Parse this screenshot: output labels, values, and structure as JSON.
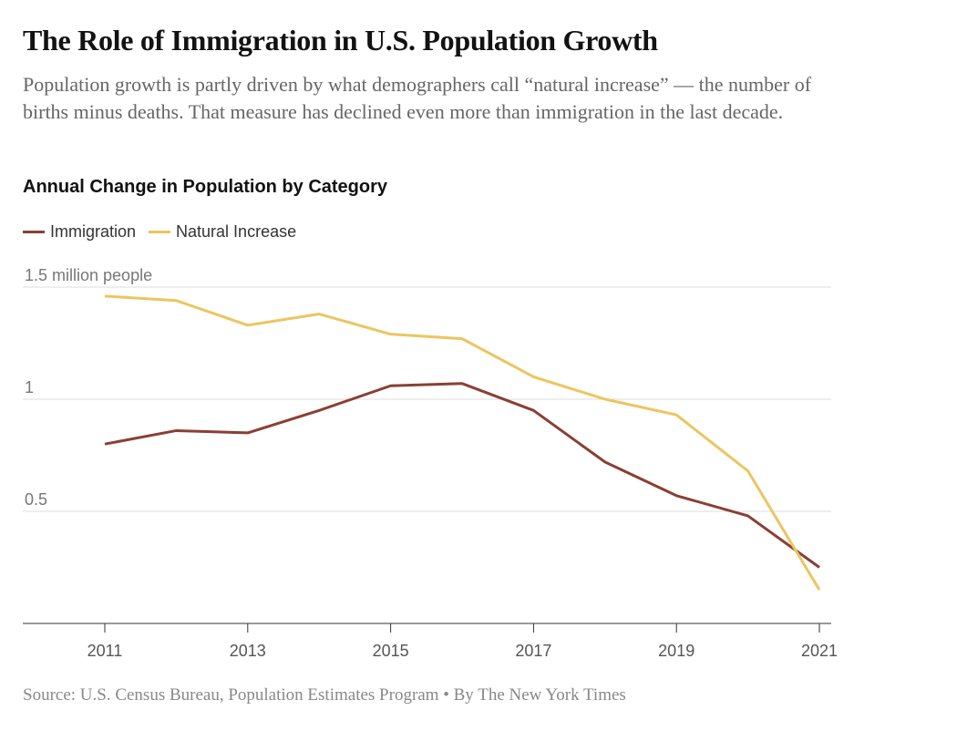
{
  "header": {
    "title": "The Role of Immigration in U.S. Population Growth",
    "subtitle": "Population growth is partly driven by what demographers call “natural increase” — the number of births minus deaths. That measure has declined even more than immigration in the last decade."
  },
  "source": "Source: U.S. Census Bureau, Population Estimates Program • By The New York Times",
  "chart_data": {
    "type": "line",
    "title": "Annual Change in Population by Category",
    "ylabel": "",
    "xlabel": "",
    "x": [
      2011,
      2012,
      2013,
      2014,
      2015,
      2016,
      2017,
      2018,
      2019,
      2020,
      2021
    ],
    "x_tick_labels": [
      "2011",
      "2013",
      "2015",
      "2017",
      "2019",
      "2021"
    ],
    "y_tick_labels": [
      {
        "value": 0.5,
        "label": "0.5"
      },
      {
        "value": 1,
        "label": "1"
      },
      {
        "value": 1.5,
        "label": "1.5 million people"
      }
    ],
    "ylim": [
      0,
      1.5
    ],
    "grid": true,
    "legend": "top-left",
    "series": [
      {
        "name": "Immigration",
        "color": "#8b3f33",
        "values": [
          0.8,
          0.86,
          0.85,
          0.95,
          1.06,
          1.07,
          0.95,
          0.72,
          0.57,
          0.48,
          0.25
        ]
      },
      {
        "name": "Natural Increase",
        "color": "#ecc55f",
        "values": [
          1.46,
          1.44,
          1.33,
          1.38,
          1.29,
          1.27,
          1.1,
          1.0,
          0.93,
          0.68,
          0.15
        ]
      }
    ]
  }
}
